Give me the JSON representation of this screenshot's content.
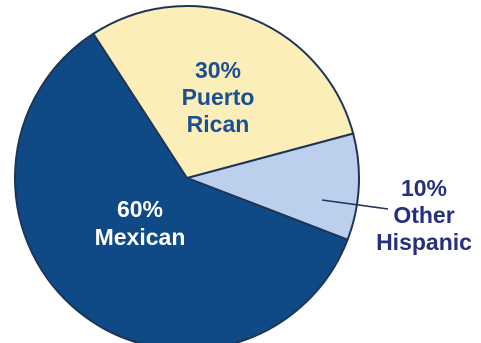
{
  "chart_data": {
    "type": "pie",
    "slices": [
      {
        "pct_label": "60%",
        "label": "Mexican",
        "value": 60,
        "color": "#0f4a86",
        "text_color": "#ffffff"
      },
      {
        "pct_label": "30%",
        "label": "Puerto Rican",
        "label_lines": [
          "Puerto",
          "Rican"
        ],
        "value": 30,
        "color": "#fbeeb9",
        "text_color": "#1b4f93"
      },
      {
        "pct_label": "10%",
        "label": "Other Hispanic",
        "label_lines": [
          "Other",
          "Hispanic"
        ],
        "value": 10,
        "color": "#bcd0ee",
        "text_color": "#26307f"
      }
    ]
  }
}
